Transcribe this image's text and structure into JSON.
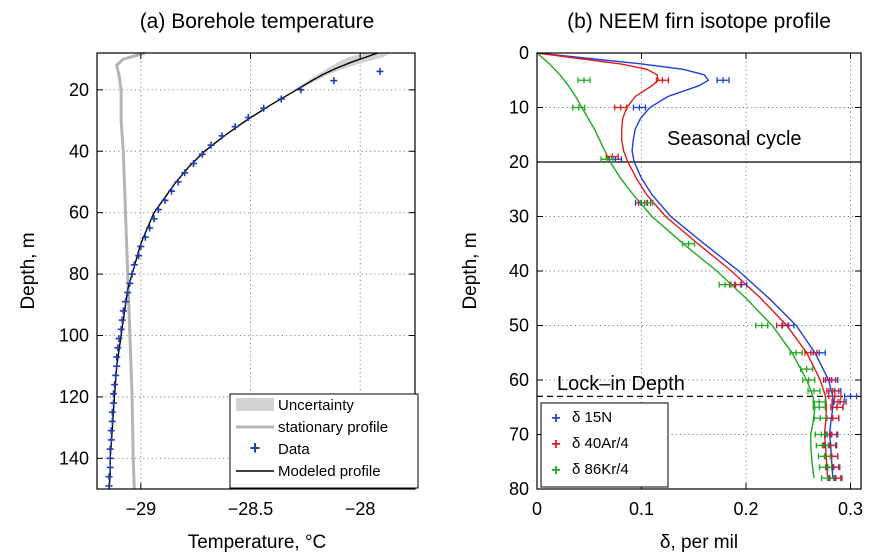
{
  "chart_data": [
    {
      "type": "line",
      "title": "(a) Borehole temperature",
      "xlabel": "Temperature, °C",
      "ylabel": "Depth, m",
      "xlim": [
        -29.2,
        -27.75
      ],
      "ylim": [
        150,
        8
      ],
      "y_reversed": true,
      "grid": true,
      "xticks": [
        -29,
        -28.5,
        -28
      ],
      "xtick_labels": [
        "−29",
        "−28.5",
        "−28"
      ],
      "yticks": [
        20,
        40,
        60,
        80,
        100,
        120,
        140
      ],
      "legend_position": "bottom-right",
      "legend": [
        "Uncertainty",
        "stationary profile",
        "Data",
        "Modeled profile"
      ],
      "colors": {
        "uncertainty": "#d3d3d3",
        "stationary": "#b4b4b4",
        "data": "#1f3fb8",
        "model": "#000000"
      },
      "modeled_profile": {
        "depth": [
          8,
          9.5,
          11,
          13,
          15,
          17,
          20,
          25,
          30,
          35,
          40,
          45,
          50,
          55,
          60,
          65,
          70,
          75,
          80,
          85,
          90,
          95,
          100,
          105,
          110,
          115,
          120,
          125,
          130,
          135,
          140,
          145,
          150
        ],
        "temperature": [
          -27.92,
          -27.98,
          -28.04,
          -28.11,
          -28.17,
          -28.22,
          -28.29,
          -28.41,
          -28.52,
          -28.62,
          -28.71,
          -28.78,
          -28.84,
          -28.89,
          -28.94,
          -28.97,
          -29.0,
          -29.02,
          -29.04,
          -29.06,
          -29.07,
          -29.08,
          -29.09,
          -29.1,
          -29.11,
          -29.115,
          -29.12,
          -29.125,
          -29.13,
          -29.135,
          -29.14,
          -29.14,
          -29.145
        ]
      },
      "uncertainty_halfwidth": {
        "depth": [
          8,
          9.5,
          11,
          13,
          15,
          20
        ],
        "halfwidth": [
          0.06,
          0.08,
          0.06,
          0.04,
          0.025,
          0.012
        ]
      },
      "stationary_profile": {
        "depth": [
          8,
          10,
          12,
          15,
          20,
          30,
          40,
          60,
          80,
          100,
          120,
          140,
          150
        ],
        "temperature": [
          -28.98,
          -29.08,
          -29.11,
          -29.1,
          -29.09,
          -29.09,
          -29.08,
          -29.07,
          -29.06,
          -29.05,
          -29.04,
          -29.035,
          -29.03
        ]
      },
      "data": {
        "depth": [
          14,
          17,
          20,
          23,
          26,
          29,
          32,
          35,
          38,
          41,
          44,
          47,
          50,
          53,
          56,
          59,
          62,
          65,
          68,
          71,
          74,
          77,
          80,
          83,
          86,
          89,
          92,
          95,
          98,
          101,
          104,
          107,
          110,
          113,
          116,
          119,
          122,
          125,
          128,
          131,
          134,
          137,
          140,
          143,
          146,
          149
        ],
        "temperature": [
          -27.91,
          -28.12,
          -28.27,
          -28.36,
          -28.44,
          -28.51,
          -28.57,
          -28.63,
          -28.68,
          -28.72,
          -28.76,
          -28.8,
          -28.83,
          -28.86,
          -28.89,
          -28.92,
          -28.94,
          -28.96,
          -28.98,
          -29.0,
          -29.01,
          -29.03,
          -29.04,
          -29.05,
          -29.06,
          -29.07,
          -29.08,
          -29.085,
          -29.09,
          -29.1,
          -29.105,
          -29.11,
          -29.11,
          -29.115,
          -29.12,
          -29.125,
          -29.125,
          -29.13,
          -29.13,
          -29.135,
          -29.135,
          -29.14,
          -29.14,
          -29.14,
          -29.145,
          -29.145
        ]
      }
    },
    {
      "type": "line",
      "title": "(b) NEEM firn isotope profile",
      "xlabel": "δ, per mil",
      "ylabel": "Depth, m",
      "xlim": [
        0,
        0.31
      ],
      "ylim": [
        80,
        0
      ],
      "y_reversed": true,
      "grid": true,
      "xticks": [
        0,
        0.1,
        0.2,
        0.3
      ],
      "xtick_labels": [
        "0",
        "0.1",
        "0.2",
        "0.3"
      ],
      "yticks": [
        0,
        10,
        20,
        30,
        40,
        50,
        60,
        70,
        80
      ],
      "legend_position": "bottom-left",
      "annotations": [
        {
          "text": "Seasonal cycle",
          "line_depth": 20,
          "line_style": "solid"
        },
        {
          "text": "Lock–in Depth",
          "line_depth": 63,
          "line_style": "dashed"
        }
      ],
      "series": [
        {
          "name": "δ 15N",
          "color": "#1f3fd8",
          "model": {
            "depth": [
              0,
              1,
              2,
              3,
              4,
              5,
              6,
              8,
              10,
              12,
              14,
              16,
              18,
              20,
              23,
              26,
              30,
              35,
              40,
              45,
              50,
              55,
              60,
              63,
              65,
              68,
              70,
              72,
              75,
              78
            ],
            "delta": [
              0,
              0.05,
              0.1,
              0.14,
              0.16,
              0.164,
              0.155,
              0.125,
              0.108,
              0.099,
              0.094,
              0.092,
              0.091,
              0.093,
              0.1,
              0.11,
              0.128,
              0.16,
              0.193,
              0.222,
              0.248,
              0.266,
              0.279,
              0.283,
              0.283,
              0.281,
              0.28,
              0.281,
              0.282,
              0.283
            ]
          },
          "data": {
            "depth": [
              5,
              10,
              19.5,
              27.5,
              42.5,
              50,
              55,
              60,
              62,
              63,
              64,
              65,
              67,
              70,
              72,
              74,
              76,
              78
            ],
            "delta": [
              0.178,
              0.098,
              0.075,
              0.1,
              0.195,
              0.24,
              0.27,
              0.282,
              0.285,
              0.3,
              0.29,
              0.287,
              0.283,
              0.282,
              0.281,
              0.282,
              0.283,
              0.285
            ]
          }
        },
        {
          "name": "δ 40Ar/4",
          "color": "#e4191c",
          "model": {
            "depth": [
              0,
              1,
              2,
              3,
              4,
              5,
              6,
              8,
              10,
              12,
              14,
              16,
              18,
              20,
              23,
              26,
              30,
              35,
              40,
              45,
              50,
              55,
              60,
              63,
              65,
              68,
              70,
              72,
              75,
              78
            ],
            "delta": [
              0,
              0.04,
              0.08,
              0.105,
              0.115,
              0.116,
              0.11,
              0.094,
              0.086,
              0.082,
              0.081,
              0.081,
              0.083,
              0.087,
              0.095,
              0.105,
              0.123,
              0.154,
              0.186,
              0.214,
              0.239,
              0.258,
              0.271,
              0.276,
              0.277,
              0.276,
              0.275,
              0.276,
              0.277,
              0.278
            ]
          },
          "data": {
            "depth": [
              5,
              10,
              19,
              27.5,
              42.5,
              50,
              55,
              60,
              62,
              63,
              64,
              65,
              67,
              70,
              72,
              74,
              76,
              78
            ],
            "delta": [
              0.12,
              0.08,
              0.072,
              0.103,
              0.19,
              0.235,
              0.262,
              0.28,
              0.283,
              0.285,
              0.288,
              0.287,
              0.283,
              0.281,
              0.28,
              0.282,
              0.284,
              0.286
            ]
          }
        },
        {
          "name": "δ 86Kr/4",
          "color": "#1eaa1e",
          "model": {
            "depth": [
              0,
              2,
              4,
              6,
              8,
              10,
              12,
              14,
              16,
              18,
              20,
              23,
              26,
              30,
              35,
              40,
              45,
              50,
              55,
              60,
              63,
              65,
              68,
              70,
              72,
              75,
              78
            ],
            "delta": [
              0,
              0.012,
              0.022,
              0.03,
              0.037,
              0.043,
              0.049,
              0.055,
              0.06,
              0.065,
              0.07,
              0.08,
              0.092,
              0.11,
              0.14,
              0.172,
              0.2,
              0.225,
              0.244,
              0.258,
              0.264,
              0.266,
              0.264,
              0.262,
              0.262,
              0.263,
              0.265
            ]
          },
          "data": {
            "depth": [
              5,
              10,
              19.5,
              27.5,
              35,
              42.5,
              50,
              55,
              58,
              60,
              62,
              64,
              65,
              67,
              70,
              72,
              74,
              76,
              78
            ],
            "delta": [
              0.045,
              0.04,
              0.067,
              0.105,
              0.145,
              0.18,
              0.215,
              0.248,
              0.258,
              0.26,
              0.265,
              0.27,
              0.27,
              0.271,
              0.272,
              0.273,
              0.275,
              0.276,
              0.278
            ]
          }
        }
      ]
    }
  ]
}
